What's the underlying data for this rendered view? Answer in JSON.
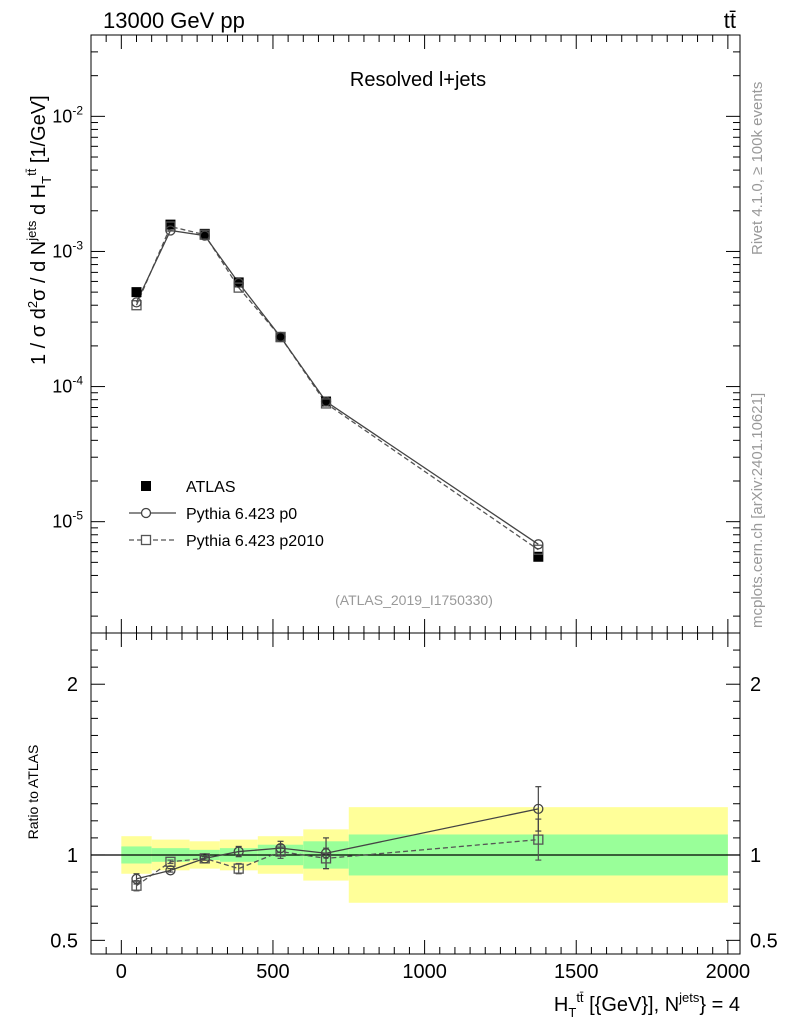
{
  "header": {
    "energy": "13000 GeV pp",
    "process": "tt̄"
  },
  "side_labels": {
    "rivet": "Rivet 4.1.0, ≥ 100k events",
    "mcplots": "mcplots.cern.ch [arXiv:2401.10621]"
  },
  "chart_data": {
    "type": "line",
    "title": "Resolved l+jets",
    "analysis_id": "(ATLAS_2019_I1750330)",
    "ylabel_main": "1 / σ d²σ / d N^{jets} d H_T^{tt̄} [1/GeV]",
    "ylabel_ratio": "Ratio to ATLAS",
    "xlabel": "H_T^{tt̄} [{GeV}], N^{jets} = 4",
    "xlim": [
      -100,
      2040
    ],
    "ylim_main": [
      1.5e-06,
      0.04
    ],
    "ylim_ratio": [
      0.42,
      2.3
    ],
    "yscale_main": "log",
    "x_ticks": [
      "0",
      "500",
      "1000",
      "1500",
      "2000"
    ],
    "y_ticks_main": [
      {
        "mant": "10",
        "exp": "-5",
        "value": 1e-05
      },
      {
        "mant": "10",
        "exp": "-4",
        "value": 0.0001
      },
      {
        "mant": "10",
        "exp": "-3",
        "value": 0.001
      },
      {
        "mant": "10",
        "exp": "-2",
        "value": 0.01
      }
    ],
    "y_ticks_ratio": [
      "0.5",
      "1",
      "2"
    ],
    "legend": {
      "placement": "lower-left",
      "entries": [
        "ATLAS",
        "Pythia 6.423 p0",
        "Pythia 6.423 p2010"
      ]
    },
    "bins": [
      0,
      100,
      225,
      325,
      450,
      600,
      750,
      2000
    ],
    "x": [
      50,
      162,
      275,
      387,
      525,
      675,
      1375
    ],
    "series": [
      {
        "name": "ATLAS",
        "values": [
          0.0005,
          0.00158,
          0.00135,
          0.00059,
          0.000232,
          7.75e-05,
          5.5e-06
        ]
      },
      {
        "name": "Pythia 6.423 p0",
        "values": [
          0.00042,
          0.00143,
          0.00131,
          0.000585,
          0.000233,
          7.75e-05,
          6.8e-06
        ],
        "ratio": [
          0.86,
          0.91,
          0.98,
          1.02,
          1.04,
          1.01,
          1.27
        ],
        "ratio_err": [
          0.03,
          0.01,
          0.01,
          0.03,
          0.04,
          0.09,
          0.13
        ]
      },
      {
        "name": "Pythia 6.423 p2010",
        "values": [
          0.0004,
          0.00153,
          0.00133,
          0.00054,
          0.000233,
          7.5e-05,
          6.2e-06
        ],
        "ratio": [
          0.82,
          0.96,
          0.98,
          0.92,
          1.02,
          0.98,
          1.09
        ],
        "ratio_err": [
          0.03,
          0.01,
          0.01,
          0.03,
          0.04,
          0.06,
          0.12
        ]
      }
    ],
    "uncertainty_bands": {
      "inner": [
        0.05,
        0.04,
        0.03,
        0.04,
        0.06,
        0.08,
        0.12
      ],
      "outer": [
        0.11,
        0.09,
        0.08,
        0.09,
        0.11,
        0.15,
        0.28
      ]
    },
    "colors": {
      "inner_band": "#99ff99",
      "outer_band": "#ffff99",
      "data": "#000000",
      "mc": "#444444",
      "mc_alt": "#555555",
      "watermark": "#999999"
    }
  }
}
